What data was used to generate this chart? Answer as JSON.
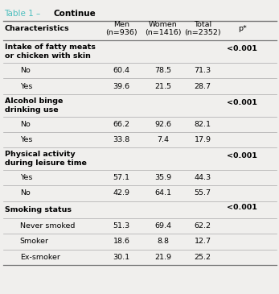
{
  "title_prefix": "Table 1 – ",
  "title_bold": "Continue",
  "title_color": "#4DBFBF",
  "background_color": "#F0EFED",
  "col_headers": [
    "Characteristics",
    "Men\n(n=936)",
    "Women\n(n=1416)",
    "Total\n(n=2352)",
    "p*"
  ],
  "rows": [
    {
      "label": "Intake of fatty meats\nor chicken with skin",
      "indent": false,
      "bold": true,
      "men": "",
      "women": "",
      "total": "",
      "p": "<0.001"
    },
    {
      "label": "No",
      "indent": true,
      "bold": false,
      "men": "60.4",
      "women": "78.5",
      "total": "71.3",
      "p": ""
    },
    {
      "label": "Yes",
      "indent": true,
      "bold": false,
      "men": "39.6",
      "women": "21.5",
      "total": "28.7",
      "p": ""
    },
    {
      "label": "Alcohol binge\ndrinking use",
      "indent": false,
      "bold": true,
      "men": "",
      "women": "",
      "total": "",
      "p": "<0.001"
    },
    {
      "label": "No",
      "indent": true,
      "bold": false,
      "men": "66.2",
      "women": "92.6",
      "total": "82.1",
      "p": ""
    },
    {
      "label": "Yes",
      "indent": true,
      "bold": false,
      "men": "33.8",
      "women": "7.4",
      "total": "17.9",
      "p": ""
    },
    {
      "label": "Physical activity\nduring leisure time",
      "indent": false,
      "bold": true,
      "men": "",
      "women": "",
      "total": "",
      "p": "<0.001"
    },
    {
      "label": "Yes",
      "indent": true,
      "bold": false,
      "men": "57.1",
      "women": "35.9",
      "total": "44.3",
      "p": ""
    },
    {
      "label": "No",
      "indent": true,
      "bold": false,
      "men": "42.9",
      "women": "64.1",
      "total": "55.7",
      "p": ""
    },
    {
      "label": "Smoking status",
      "indent": false,
      "bold": true,
      "men": "",
      "women": "",
      "total": "",
      "p": "<0.001"
    },
    {
      "label": "Never smoked",
      "indent": true,
      "bold": false,
      "men": "51.3",
      "women": "69.4",
      "total": "62.2",
      "p": ""
    },
    {
      "label": "Smoker",
      "indent": true,
      "bold": false,
      "men": "18.6",
      "women": "8.8",
      "total": "12.7",
      "p": ""
    },
    {
      "label": "Ex-smoker",
      "indent": true,
      "bold": false,
      "men": "30.1",
      "women": "21.9",
      "total": "25.2",
      "p": ""
    }
  ],
  "header_line_color": "#777777",
  "row_line_color": "#AAAAAA",
  "font_size": 6.8,
  "header_font_size": 6.8,
  "title_font_size": 7.5
}
